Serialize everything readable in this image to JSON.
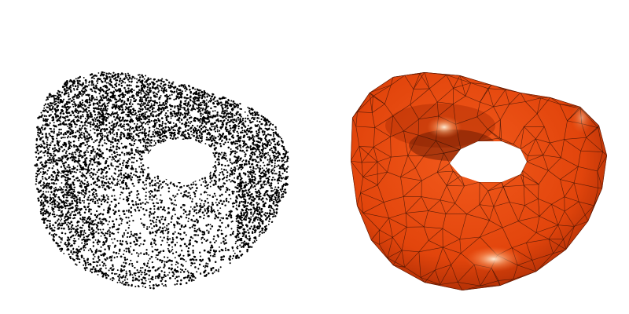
{
  "figure": {
    "panels": [
      {
        "rendering": "point-cloud",
        "point_color": "#000000"
      },
      {
        "rendering": "triangle-mesh",
        "surface_color": "#e2450c",
        "edge_color": "#3a1205"
      }
    ],
    "background": "#ffffff"
  }
}
